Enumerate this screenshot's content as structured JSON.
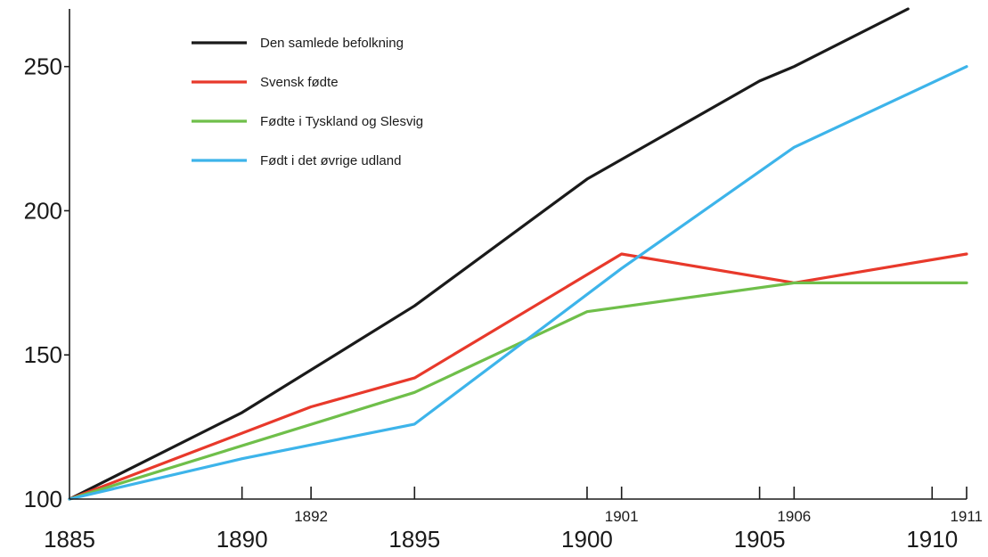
{
  "chart_data": {
    "type": "line",
    "title": "",
    "xlabel": "",
    "ylabel": "",
    "xlim": [
      1885,
      1911
    ],
    "ylim": [
      100,
      270
    ],
    "grid": false,
    "legend_position": "top-left",
    "y_ticks": [
      {
        "value": 100,
        "label": "100"
      },
      {
        "value": 150,
        "label": "150"
      },
      {
        "value": 200,
        "label": "200"
      },
      {
        "value": 250,
        "label": "250"
      }
    ],
    "x_major_ticks": [
      {
        "value": 1885,
        "label": "1885"
      },
      {
        "value": 1890,
        "label": "1890"
      },
      {
        "value": 1895,
        "label": "1895"
      },
      {
        "value": 1900,
        "label": "1900"
      },
      {
        "value": 1905,
        "label": "1905"
      },
      {
        "value": 1910,
        "label": "1910"
      }
    ],
    "x_minor_ticks": [
      {
        "value": 1892,
        "label": "1892"
      },
      {
        "value": 1901,
        "label": "1901"
      },
      {
        "value": 1906,
        "label": "1906"
      },
      {
        "value": 1911,
        "label": "1911"
      }
    ],
    "series": [
      {
        "name": "Den samlede befolkning",
        "color": "#1a1a1a",
        "points": [
          [
            1885,
            100
          ],
          [
            1890,
            130
          ],
          [
            1895,
            167
          ],
          [
            1900,
            211
          ],
          [
            1905,
            245
          ],
          [
            1906,
            250
          ],
          [
            1909.3,
            270
          ]
        ]
      },
      {
        "name": "Svensk fødte",
        "color": "#e8392b",
        "points": [
          [
            1885,
            100
          ],
          [
            1892,
            132
          ],
          [
            1895,
            142
          ],
          [
            1901,
            185
          ],
          [
            1906,
            175
          ],
          [
            1911,
            185
          ]
        ]
      },
      {
        "name": "Fødte i Tyskland og Slesvig",
        "color": "#6fbf4a",
        "points": [
          [
            1885,
            100
          ],
          [
            1895,
            137
          ],
          [
            1900,
            165
          ],
          [
            1906,
            175
          ],
          [
            1911,
            175
          ]
        ]
      },
      {
        "name": "Født i det øvrige udland",
        "color": "#3db4ea",
        "points": [
          [
            1885,
            100
          ],
          [
            1890,
            114
          ],
          [
            1895,
            126
          ],
          [
            1901,
            180
          ],
          [
            1906,
            222
          ],
          [
            1911,
            250
          ]
        ]
      }
    ]
  }
}
